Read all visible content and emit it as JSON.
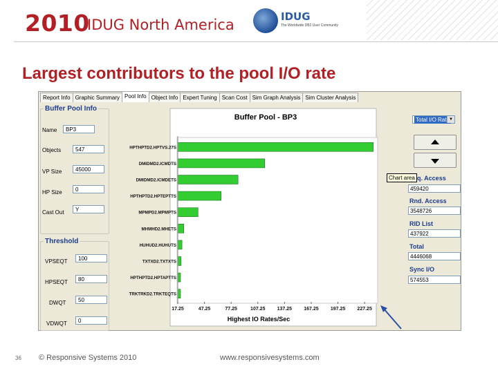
{
  "header": {
    "year": "2010",
    "event": "IDUG North America",
    "logo_brand": "IDUG",
    "logo_tag": "The Worldwide DB2 User Community"
  },
  "slide_title": "Largest contributors to the pool I/O rate",
  "app": {
    "tabs": [
      "Report Info",
      "Graphic Summary",
      "Pool Info",
      "Object Info",
      "Expert Tuning",
      "Scan Cost",
      "Sim Graph Analysis",
      "Sim Cluster Analysis"
    ],
    "active_tab": "Pool Info",
    "buffer_pool_info": {
      "title": "Buffer Pool Info",
      "fields": [
        {
          "label": "Name",
          "value": "BP3"
        },
        {
          "label": "Objects",
          "value": "547"
        },
        {
          "label": "VP Size",
          "value": "45000"
        },
        {
          "label": "HP Size",
          "value": "0"
        },
        {
          "label": "Cast Out",
          "value": "Y"
        }
      ]
    },
    "threshold": {
      "title": "Threshold",
      "fields": [
        {
          "label": "VPSEQT",
          "value": "100"
        },
        {
          "label": "HPSEQT",
          "value": "80"
        },
        {
          "label": "DWQT",
          "value": "50"
        },
        {
          "label": "VDWQT",
          "value": "0"
        }
      ]
    },
    "right_panel": {
      "combo_value": "Total I/O Rate",
      "tooltip": "Chart area",
      "stats": [
        {
          "label": "Seq. Access",
          "value": "459420"
        },
        {
          "label": "Rnd. Access",
          "value": "3548726"
        },
        {
          "label": "RID List",
          "value": "437922"
        },
        {
          "label": "Total",
          "value": "4446068"
        },
        {
          "label": "Sync I/O",
          "value": "574553"
        }
      ]
    }
  },
  "chart_data": {
    "type": "bar",
    "orientation": "horizontal",
    "title": "Buffer Pool - BP3",
    "xlabel": "Highest IO Rates/Sec",
    "xlim": [
      17.25,
      237.25
    ],
    "xticks": [
      "17.25",
      "47.25",
      "77.25",
      "107.25",
      "137.25",
      "167.25",
      "197.25",
      "227.25"
    ],
    "categories": [
      "HPTHPTD2.HPTVS.27S",
      "DMIDMD2.ICMDTS",
      "DMIDMD2.ICMDETS",
      "HPTHPTD2.HPTEPTTS",
      "MPMPD2.MPMPTS",
      "MHMHD2.MHETS",
      "HUHUD2.HUHUTS",
      "TXTXD2.TXTXTS",
      "HPTHPTD2.HPTAPTTS",
      "TRKTRKD2.TRKTEQTS"
    ],
    "values": [
      237,
      115,
      85,
      66,
      40,
      24,
      22,
      21,
      20,
      19
    ],
    "color": "#33cc33",
    "grid": false
  },
  "footer": {
    "page": "36",
    "copyright": "© Responsive Systems 2010",
    "url": "www.responsivesystems.com"
  }
}
